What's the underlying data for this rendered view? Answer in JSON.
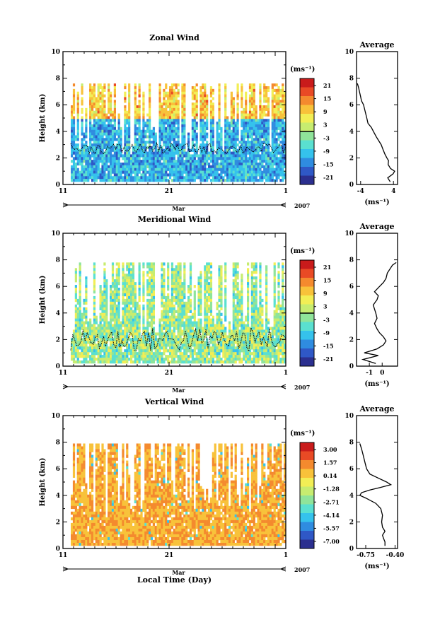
{
  "figure": {
    "xlabel": "Local Time (Day)",
    "date_label": "Mar",
    "year_label": "2007"
  },
  "chart_data": [
    {
      "type": "heatmap",
      "title": "Zonal Wind",
      "ylabel": "Height (km)",
      "ylim": [
        0,
        10
      ],
      "yticks": [
        "0",
        "2",
        "4",
        "6",
        "8",
        "10"
      ],
      "xticks": [
        "11",
        "21",
        "1"
      ],
      "x_range_days": [
        11,
        32
      ],
      "data_top_km": 7.6,
      "colorbar": {
        "unit": "(ms⁻¹)",
        "labels": [
          "21",
          "15",
          "9",
          "3",
          "-3",
          "-9",
          "-15",
          "-21"
        ],
        "range": [
          -24,
          24
        ],
        "zero_line": true
      },
      "profile": {
        "title": "Average",
        "xticks": [
          "-4",
          "4"
        ],
        "xlim": [
          -5,
          5
        ],
        "xlabel": "(ms⁻¹)",
        "heights": [
          0.2,
          0.5,
          0.8,
          1.0,
          1.2,
          1.5,
          1.8,
          2.0,
          2.3,
          2.6,
          3.0,
          3.3,
          3.6,
          4.0,
          4.3,
          4.6,
          5.0,
          5.5,
          6.0,
          6.3,
          6.6,
          7.0,
          7.3,
          7.6
        ],
        "values": [
          3.2,
          2.6,
          3.9,
          4.3,
          3.3,
          2.7,
          2.8,
          2.4,
          1.9,
          1.5,
          1.0,
          0.4,
          -0.2,
          -0.9,
          -1.4,
          -2.2,
          -2.5,
          -2.9,
          -3.3,
          -3.8,
          -4.0,
          -4.3,
          -4.5,
          -4.8
        ]
      }
    },
    {
      "type": "heatmap",
      "title": "Meridional Wind",
      "ylabel": "Height (km)",
      "ylim": [
        0,
        10
      ],
      "yticks": [
        "0",
        "2",
        "4",
        "6",
        "8",
        "10"
      ],
      "xticks": [
        "11",
        "21",
        "1"
      ],
      "x_range_days": [
        11,
        32
      ],
      "data_top_km": 7.8,
      "colorbar": {
        "unit": "(ms⁻¹)",
        "labels": [
          "21",
          "15",
          "9",
          "3",
          "-3",
          "-9",
          "-15",
          "-21"
        ],
        "range": [
          -24,
          24
        ],
        "zero_line": true
      },
      "profile": {
        "title": "Average",
        "xticks": [
          "-1",
          "0"
        ],
        "xlim": [
          -2.0,
          1.2
        ],
        "xlabel": "(ms⁻¹)",
        "heights": [
          0.2,
          0.5,
          0.8,
          1.0,
          1.3,
          1.6,
          1.9,
          2.2,
          2.5,
          2.8,
          3.2,
          3.6,
          4.0,
          4.3,
          4.6,
          5.0,
          5.3,
          5.6,
          6.0,
          6.3,
          6.6,
          7.0,
          7.3,
          7.6,
          7.8
        ],
        "values": [
          -0.5,
          -1.5,
          -0.3,
          -1.4,
          -0.4,
          0.1,
          0.3,
          0.1,
          -0.2,
          -0.4,
          -0.6,
          -0.4,
          -0.5,
          -0.6,
          -0.7,
          -0.4,
          -0.3,
          -0.6,
          -0.2,
          0.1,
          0.3,
          0.4,
          0.6,
          0.8,
          1.1
        ]
      }
    },
    {
      "type": "heatmap",
      "title": "Vertical Wind",
      "ylabel": "Height (km)",
      "ylim": [
        0,
        10
      ],
      "yticks": [
        "0",
        "2",
        "4",
        "6",
        "8",
        "10"
      ],
      "xticks": [
        "11",
        "21",
        "1"
      ],
      "x_range_days": [
        11,
        32
      ],
      "data_top_km": 7.9,
      "colorbar": {
        "unit": "(ms⁻¹)",
        "labels": [
          "3.00",
          "1.57",
          "0.14",
          "-1.28",
          "-2.71",
          "-4.14",
          "-5.57",
          "-7.00"
        ],
        "range": [
          -8,
          4
        ],
        "zero_line": false
      },
      "profile": {
        "title": "Average",
        "xticks": [
          "-0.75",
          "-0.40"
        ],
        "xlim": [
          -0.86,
          -0.37
        ],
        "xlabel": "(ms⁻¹)",
        "heights": [
          0.2,
          0.5,
          0.8,
          1.0,
          1.3,
          1.6,
          2.0,
          2.5,
          3.0,
          3.4,
          3.8,
          4.0,
          4.2,
          4.4,
          4.6,
          4.8,
          5.0,
          5.3,
          5.6,
          6.0,
          6.5,
          7.0,
          7.5,
          7.9
        ],
        "values": [
          -0.52,
          -0.52,
          -0.54,
          -0.55,
          -0.52,
          -0.55,
          -0.56,
          -0.55,
          -0.57,
          -0.63,
          -0.75,
          -0.82,
          -0.8,
          -0.7,
          -0.57,
          -0.45,
          -0.5,
          -0.6,
          -0.7,
          -0.74,
          -0.76,
          -0.78,
          -0.8,
          -0.82
        ]
      }
    }
  ]
}
